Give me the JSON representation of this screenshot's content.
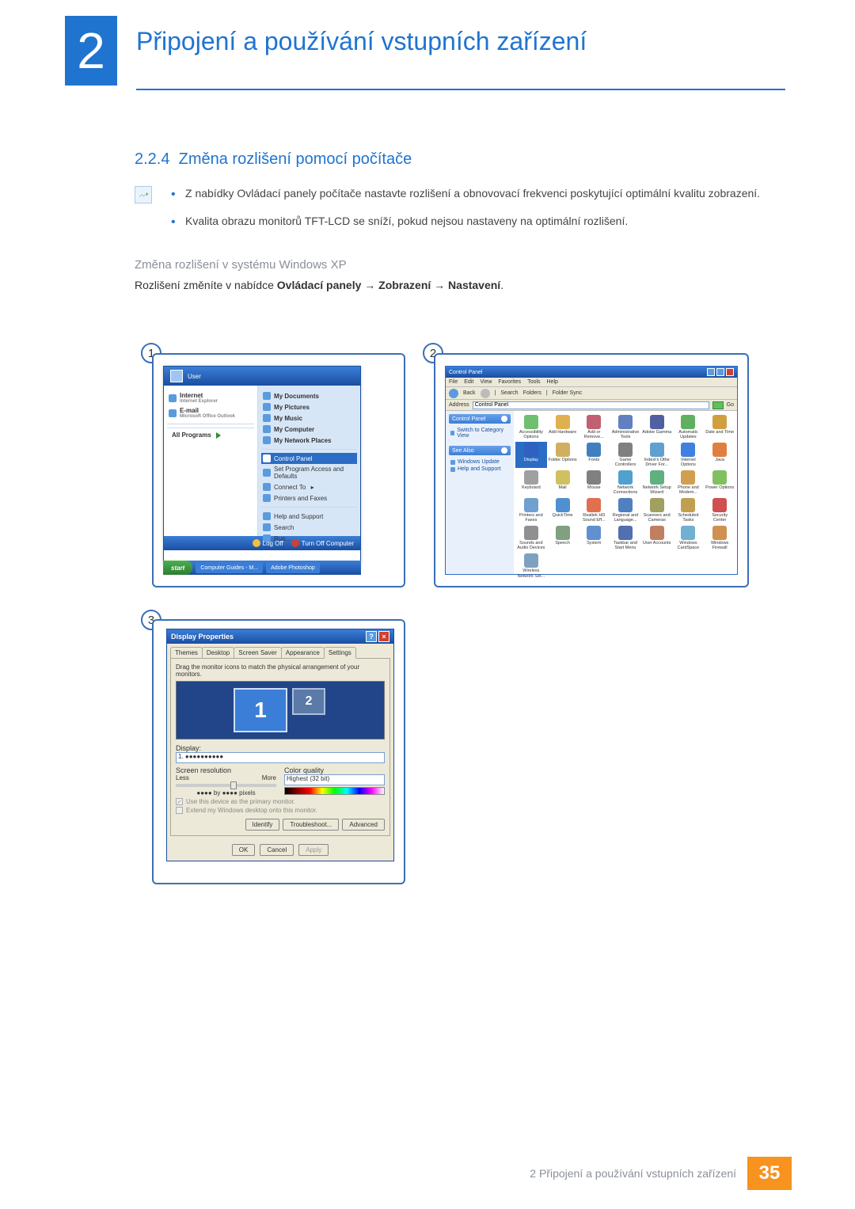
{
  "chapter_number": "2",
  "page_title": "Připojení a používání vstupních zařízení",
  "section": {
    "number": "2.2.4",
    "title": "Změna rozlišení pomocí počítače"
  },
  "bullets": [
    "Z nabídky Ovládací panely počítače nastavte rozlišení a obnovovací frekvenci poskytující optimální kvalitu zobrazení.",
    "Kvalita obrazu monitorů TFT-LCD se sníží, pokud nejsou nastaveny na optimální rozlišení."
  ],
  "sub_heading": "Změna rozlišení v systému Windows XP",
  "body_line": {
    "prefix": "Rozlišení změníte v nabídce ",
    "bold": "Ovládací panely → Zobrazení → Nastavení",
    "suffix": "."
  },
  "steps": {
    "s1": "1",
    "s2": "2",
    "s3": "3"
  },
  "colors": {
    "blue": "#1f74d0",
    "border_blue": "#3b6fb5",
    "xp_grad_a": "#3b7ed8",
    "xp_grad_b": "#1a4ea0",
    "xp_green_a": "#4caf50",
    "xp_green_b": "#2e7d32",
    "panel_bg": "#ece9d8",
    "orange": "#f7931e",
    "grey_text": "#8a8f98",
    "red_close": "#d04030"
  },
  "xp_start": {
    "user": "User",
    "left": [
      {
        "label": "Internet",
        "sub": "Internet Explorer"
      },
      {
        "label": "E-mail",
        "sub": "Microsoft Office Outlook"
      }
    ],
    "right_top": [
      "My Documents",
      "My Pictures",
      "My Music",
      "My Computer",
      "My Network Places"
    ],
    "right_mid_selected": "Control Panel",
    "right_mid": [
      "Set Program Access and Defaults",
      "Connect To",
      "Printers and Faxes"
    ],
    "right_bottom": [
      "Help and Support",
      "Search",
      "Run..."
    ],
    "all_programs": "All Programs",
    "logoff": "Log Off",
    "turnoff": "Turn Off Computer",
    "start": "start",
    "task1": "Computer Guides - M...",
    "task2": "Adobe Photoshop"
  },
  "control_panel": {
    "title": "Control Panel",
    "menu": [
      "File",
      "Edit",
      "View",
      "Favorites",
      "Tools",
      "Help"
    ],
    "toolbar": [
      "Back",
      "Search",
      "Folders",
      "Folder Sync"
    ],
    "address_label": "Address",
    "address_value": "Control Panel",
    "go": "Go",
    "side_header": "Control Panel",
    "side1": "Switch to Category View",
    "see_also": "See Also",
    "see_items": [
      "Windows Update",
      "Help and Support"
    ],
    "icons": [
      {
        "label": "Accessibility Options",
        "c": "#6fbf6f"
      },
      {
        "label": "Add Hardware",
        "c": "#e0b050"
      },
      {
        "label": "Add or Remove...",
        "c": "#c06070"
      },
      {
        "label": "Administrative Tools",
        "c": "#6080c0"
      },
      {
        "label": "Adobe Gamma",
        "c": "#5060a0"
      },
      {
        "label": "Automatic Updates",
        "c": "#60b060"
      },
      {
        "label": "Date and Time",
        "c": "#d0a040"
      },
      {
        "label": "Display",
        "c": "#3060c0",
        "sel": true
      },
      {
        "label": "Folder Options",
        "c": "#d0b060"
      },
      {
        "label": "Fonts",
        "c": "#4080c0"
      },
      {
        "label": "Game Controllers",
        "c": "#808080"
      },
      {
        "label": "Indexi's Othe Driver For...",
        "c": "#60a0d0"
      },
      {
        "label": "Internet Options",
        "c": "#4080e0"
      },
      {
        "label": "Java",
        "c": "#e08040"
      },
      {
        "label": "Keyboard",
        "c": "#a0a0a0"
      },
      {
        "label": "Mail",
        "c": "#d0c060"
      },
      {
        "label": "Mouse",
        "c": "#808080"
      },
      {
        "label": "Network Connections",
        "c": "#50a0d0"
      },
      {
        "label": "Network Setup Wizard",
        "c": "#60b080"
      },
      {
        "label": "Phone and Modem...",
        "c": "#d0a050"
      },
      {
        "label": "Power Options",
        "c": "#80c060"
      },
      {
        "label": "Printers and Faxes",
        "c": "#70a0d0"
      },
      {
        "label": "QuickTime",
        "c": "#5090d0"
      },
      {
        "label": "Realtek HD Sound Eff...",
        "c": "#e07050"
      },
      {
        "label": "Regional and Language...",
        "c": "#5080c0"
      },
      {
        "label": "Scanners and Cameras",
        "c": "#a0a060"
      },
      {
        "label": "Scheduled Tasks",
        "c": "#c0a050"
      },
      {
        "label": "Security Center",
        "c": "#d05050"
      },
      {
        "label": "Sounds and Audio Devices",
        "c": "#909090"
      },
      {
        "label": "Speech",
        "c": "#80a080"
      },
      {
        "label": "System",
        "c": "#6090d0"
      },
      {
        "label": "Taskbar and Start Menu",
        "c": "#5070b0"
      },
      {
        "label": "User Accounts",
        "c": "#c08060"
      },
      {
        "label": "Windows CardSpace",
        "c": "#70b0d0"
      },
      {
        "label": "Windows Firewall",
        "c": "#d09050"
      },
      {
        "label": "Wireless Network Set...",
        "c": "#80a0c0"
      }
    ]
  },
  "display_props": {
    "title": "Display Properties",
    "tabs": [
      "Themes",
      "Desktop",
      "Screen Saver",
      "Appearance",
      "Settings"
    ],
    "active_tab": "Settings",
    "hint": "Drag the monitor icons to match the physical arrangement of your monitors.",
    "mon1": "1",
    "mon2": "2",
    "display_label": "Display:",
    "display_value": "1. ●●●●●●●●●●",
    "res_label": "Screen resolution",
    "less": "Less",
    "more": "More",
    "res_value": "●●●● by ●●●● pixels",
    "cq_label": "Color quality",
    "cq_value": "Highest (32 bit)",
    "cb1": "Use this device as the primary monitor.",
    "cb2": "Extend my Windows desktop onto this monitor.",
    "identify": "Identify",
    "troubleshoot": "Troubleshoot...",
    "advanced": "Advanced",
    "ok": "OK",
    "cancel": "Cancel",
    "apply": "Apply"
  },
  "footer": {
    "text": "2 Připojení a používání vstupních zařízení",
    "page": "35"
  }
}
